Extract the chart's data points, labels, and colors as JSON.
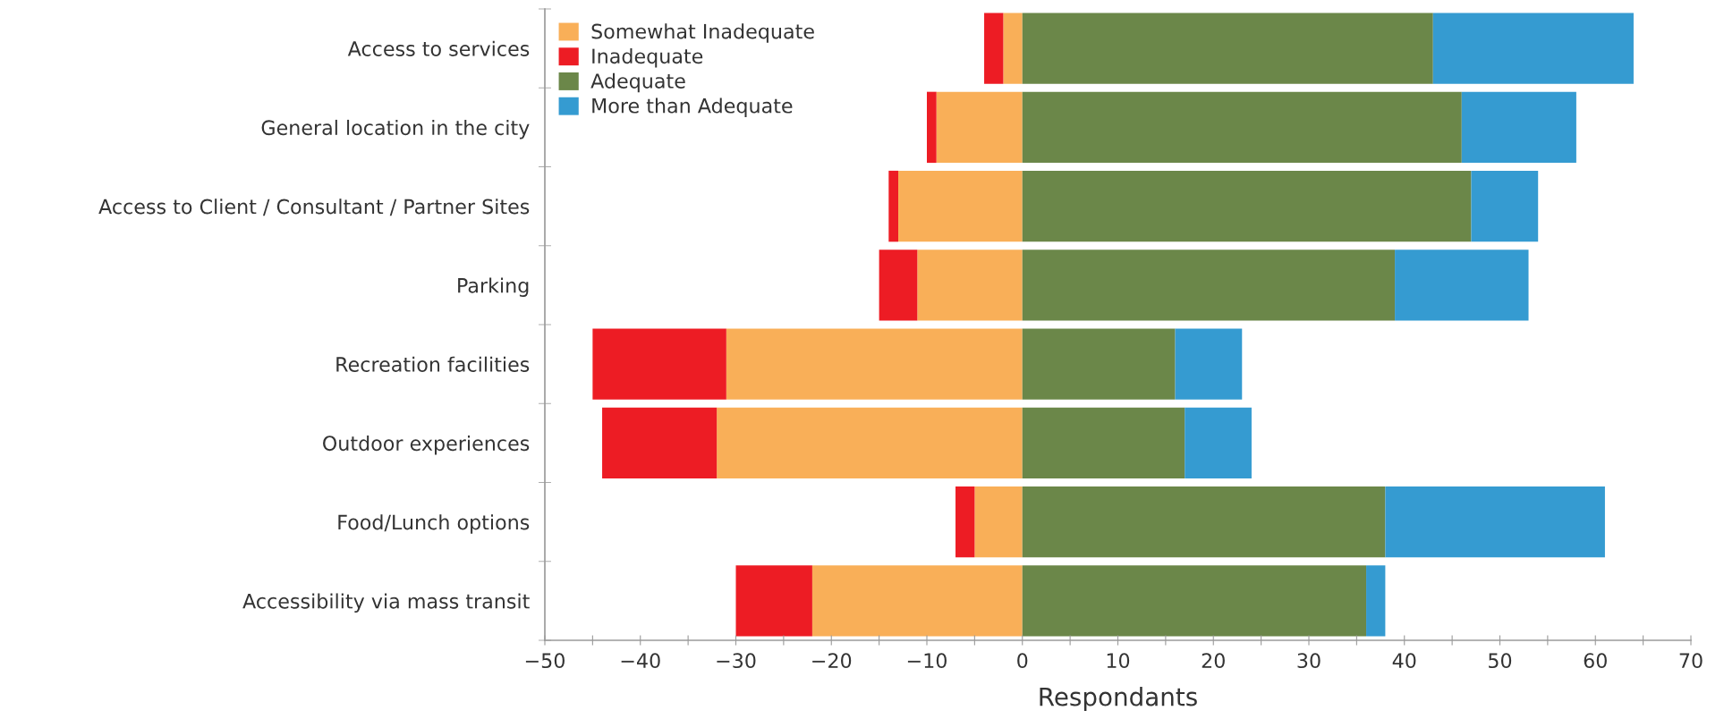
{
  "chart_data": {
    "type": "bar",
    "orientation": "horizontal",
    "stacked": true,
    "xlabel": "Respondants",
    "categories": [
      "Access to services",
      "General location in the city",
      "Access to Client / Consultant / Partner Sites",
      "Parking",
      "Recreation facilities",
      "Outdoor experiences",
      "Food/Lunch options",
      "Accessibility via mass transit"
    ],
    "series": [
      {
        "name": "Somewhat Inadequate",
        "color": "#f9af58",
        "values": [
          -2,
          -9,
          -13,
          -11,
          -31,
          -32,
          -5,
          -22
        ]
      },
      {
        "name": "Inadequate",
        "color": "#ed1c24",
        "values": [
          -2,
          -1,
          -1,
          -4,
          -14,
          -12,
          -2,
          -8
        ]
      },
      {
        "name": "Adequate",
        "color": "#6b8749",
        "values": [
          43,
          46,
          47,
          39,
          16,
          17,
          38,
          36
        ]
      },
      {
        "name": "More than Adequate",
        "color": "#359bd1",
        "values": [
          21,
          12,
          7,
          14,
          7,
          7,
          23,
          2
        ]
      }
    ],
    "xlim": [
      -50,
      70
    ],
    "xticks": [
      -50,
      {
        "value": -45,
        "label": null
      },
      -40,
      {
        "value": -35,
        "label": null
      },
      -30,
      {
        "value": -25,
        "label": null
      },
      -20,
      {
        "value": -15,
        "label": null
      },
      -10,
      {
        "value": -5,
        "label": null
      },
      0,
      {
        "value": 5,
        "label": null
      },
      10,
      {
        "value": 15,
        "label": null
      },
      20,
      {
        "value": 25,
        "label": null
      },
      30,
      {
        "value": 35,
        "label": null
      },
      40,
      {
        "value": 45,
        "label": null
      },
      50,
      {
        "value": 55,
        "label": null
      },
      60,
      {
        "value": 65,
        "label": null
      },
      70
    ],
    "grid": false,
    "legend": "top left"
  }
}
